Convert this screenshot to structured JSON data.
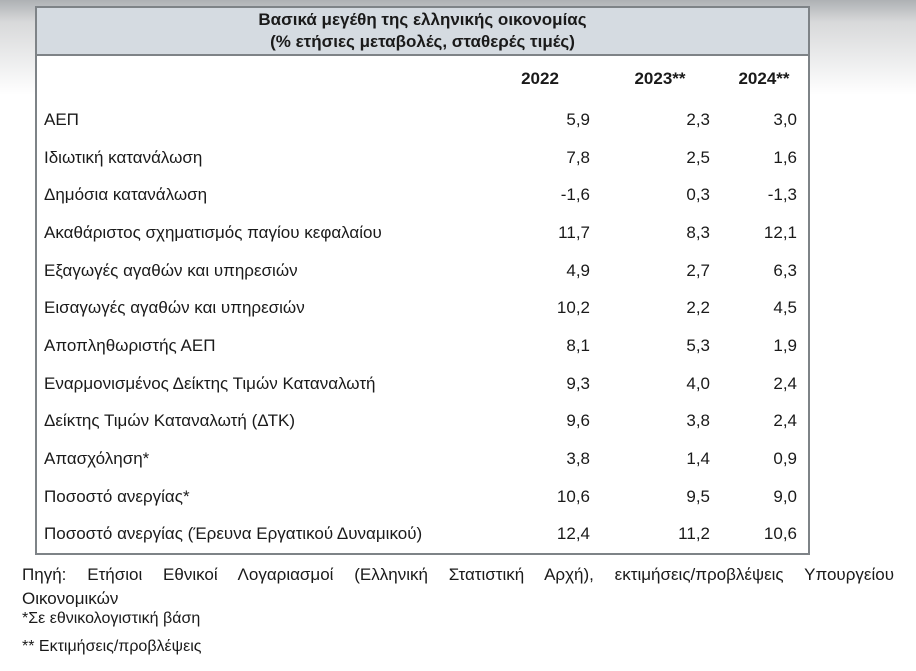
{
  "table": {
    "title_line1": "Βασικά μεγέθη της ελληνικής οικονομίας",
    "title_line2": "(% ετήσιες μεταβολές, σταθερές τιμές)",
    "columns": [
      "2022",
      "2023**",
      "2024**"
    ],
    "rows": [
      {
        "label": "ΑΕΠ",
        "values": [
          "5,9",
          "2,3",
          "3,0"
        ]
      },
      {
        "label": "Ιδιωτική κατανάλωση",
        "values": [
          "7,8",
          "2,5",
          "1,6"
        ]
      },
      {
        "label": "Δημόσια κατανάλωση",
        "values": [
          "-1,6",
          "0,3",
          "-1,3"
        ]
      },
      {
        "label": "Ακαθάριστος σχηματισμός παγίου κεφαλαίου",
        "values": [
          "11,7",
          "8,3",
          "12,1"
        ]
      },
      {
        "label": "Εξαγωγές αγαθών και υπηρεσιών",
        "values": [
          "4,9",
          "2,7",
          "6,3"
        ]
      },
      {
        "label": "Εισαγωγές αγαθών και υπηρεσιών",
        "values": [
          "10,2",
          "2,2",
          "4,5"
        ]
      },
      {
        "label": "Αποπληθωριστής ΑΕΠ",
        "values": [
          "8,1",
          "5,3",
          "1,9"
        ]
      },
      {
        "label": "Εναρμονισμένος Δείκτης Τιμών Καταναλωτή",
        "values": [
          "9,3",
          "4,0",
          "2,4"
        ]
      },
      {
        "label": "Δείκτης Τιμών Καταναλωτή (ΔΤΚ)",
        "values": [
          "9,6",
          "3,8",
          "2,4"
        ]
      },
      {
        "label": "Απασχόληση*",
        "values": [
          "3,8",
          "1,4",
          "0,9"
        ]
      },
      {
        "label": "Ποσοστό ανεργίας*",
        "values": [
          "10,6",
          "9,5",
          "9,0"
        ]
      },
      {
        "label": "Ποσοστό ανεργίας (Έρευνα Εργατικού Δυναμικού)",
        "values": [
          "12,4",
          "11,2",
          "10,6"
        ]
      }
    ]
  },
  "footnotes": {
    "source_line1": "Πηγή: Ετήσιοι Εθνικοί Λογαριασμοί (Ελληνική Στατιστική Αρχή), εκτιμήσεις/προβλέψεις Υπουργείου",
    "source_line2": "Οικονομικών",
    "note1": "*Σε εθνικολογιστική βάση",
    "note2": "** Εκτιμήσεις/προβλέψεις"
  },
  "colors": {
    "title_band_bg": "#d5dbe1",
    "table_border": "#7e8387",
    "text": "#1a1a1a"
  }
}
